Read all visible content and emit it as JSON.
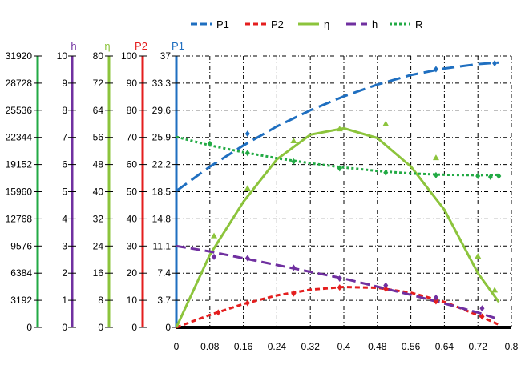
{
  "chart_data": {
    "type": "line",
    "title": "",
    "xlabel": "",
    "x_ticks": [
      "0",
      "0.08",
      "0.16",
      "0.24",
      "0.32",
      "0.4",
      "0.48",
      "0.56",
      "0.64",
      "0.72",
      "0.8"
    ],
    "xlim": [
      0,
      0.8
    ],
    "grid": true,
    "legend_position": "top",
    "axes": [
      {
        "name": "R",
        "color": "#22aa44",
        "ticks": [
          "0",
          "3192",
          "6384",
          "9576",
          "12768",
          "15960",
          "19152",
          "22344",
          "25536",
          "28728",
          "31920"
        ],
        "ylim": [
          0,
          31920
        ]
      },
      {
        "name": "h",
        "color": "#7030a0",
        "ticks": [
          "0",
          "1",
          "2",
          "3",
          "4",
          "5",
          "6",
          "7",
          "8",
          "9",
          "10"
        ],
        "ylim": [
          0,
          10
        ]
      },
      {
        "name": "η",
        "color": "#8cc43c",
        "ticks": [
          "0",
          "8",
          "16",
          "24",
          "32",
          "40",
          "48",
          "56",
          "64",
          "72",
          "80"
        ],
        "ylim": [
          0,
          80
        ]
      },
      {
        "name": "P2",
        "color": "#e41e1e",
        "ticks": [
          "0",
          "10",
          "20",
          "30",
          "40",
          "50",
          "60",
          "70",
          "80",
          "90",
          "100"
        ],
        "ylim": [
          0,
          100
        ]
      },
      {
        "name": "P1",
        "color": "#1f6fc0",
        "ticks": [
          "0",
          "3.7",
          "7.4",
          "11.1",
          "14.8",
          "18.5",
          "22.2",
          "25.9",
          "29.6",
          "33.3",
          "37"
        ],
        "ylim": [
          0,
          37
        ]
      }
    ],
    "series": [
      {
        "name": "P1",
        "axis": "P1",
        "color": "#1f6fc0",
        "dash": "16 7",
        "x": [
          0,
          0.08,
          0.16,
          0.24,
          0.32,
          0.4,
          0.48,
          0.56,
          0.64,
          0.72,
          0.77
        ],
        "y": [
          18.6,
          21.9,
          24.8,
          27.4,
          29.6,
          31.5,
          33.1,
          34.4,
          35.3,
          35.9,
          36.1
        ]
      },
      {
        "name": "P2",
        "axis": "P2",
        "color": "#e41e1e",
        "dash": "6 4",
        "x": [
          0,
          0.08,
          0.16,
          0.24,
          0.32,
          0.4,
          0.48,
          0.56,
          0.64,
          0.72,
          0.77
        ],
        "y": [
          0,
          4.6,
          8.6,
          11.8,
          13.9,
          14.9,
          14.6,
          12.8,
          9.4,
          4.5,
          1.0
        ]
      },
      {
        "name": "η",
        "axis": "η",
        "color": "#8cc43c",
        "dash": "",
        "x": [
          0,
          0.08,
          0.16,
          0.24,
          0.32,
          0.4,
          0.48,
          0.56,
          0.64,
          0.72,
          0.77
        ],
        "y": [
          0,
          21.4,
          37,
          49.5,
          56.8,
          58.7,
          55.8,
          47.4,
          34.7,
          16.0,
          7.5
        ]
      },
      {
        "name": "h",
        "axis": "h",
        "color": "#7030a0",
        "dash": "12 6",
        "x": [
          0,
          0.08,
          0.16,
          0.24,
          0.32,
          0.4,
          0.48,
          0.56,
          0.64,
          0.72,
          0.77
        ],
        "y": [
          3.0,
          2.8,
          2.55,
          2.3,
          2.05,
          1.8,
          1.5,
          1.2,
          0.88,
          0.55,
          0.3
        ]
      },
      {
        "name": "R",
        "axis": "R",
        "color": "#22aa44",
        "dash": "3 3",
        "x": [
          0,
          0.08,
          0.16,
          0.24,
          0.32,
          0.4,
          0.48,
          0.56,
          0.64,
          0.72,
          0.77
        ],
        "y": [
          22400,
          21400,
          20600,
          19900,
          19300,
          18800,
          18400,
          18100,
          17950,
          17900,
          17950
        ]
      }
    ],
    "markers": [
      {
        "series": "P1",
        "x": [
          0.17,
          0.62,
          0.76
        ],
        "y": [
          26.4,
          35.2,
          36.0
        ]
      },
      {
        "series": "P2",
        "x": [
          0.1,
          0.17,
          0.28,
          0.39,
          0.5,
          0.62,
          0.73
        ],
        "y": [
          5.5,
          9.0,
          12.5,
          14.7,
          14.2,
          9.6,
          4.0
        ]
      },
      {
        "series": "η",
        "x": [
          0.09,
          0.17,
          0.28,
          0.39,
          0.5,
          0.62,
          0.72,
          0.76
        ],
        "y": [
          27,
          41,
          55,
          58.5,
          60,
          50,
          21,
          11
        ]
      },
      {
        "series": "h",
        "x": [
          0.09,
          0.17,
          0.28,
          0.39,
          0.5,
          0.62,
          0.73
        ],
        "y": [
          2.6,
          2.55,
          2.2,
          1.8,
          1.55,
          1.1,
          0.7
        ]
      },
      {
        "series": "R",
        "x": [
          0.08,
          0.17,
          0.28,
          0.39,
          0.5,
          0.62,
          0.72,
          0.75,
          0.77
        ],
        "y": [
          21600,
          20500,
          19500,
          18700,
          18200,
          17900,
          17800,
          17700,
          17800
        ]
      }
    ]
  }
}
